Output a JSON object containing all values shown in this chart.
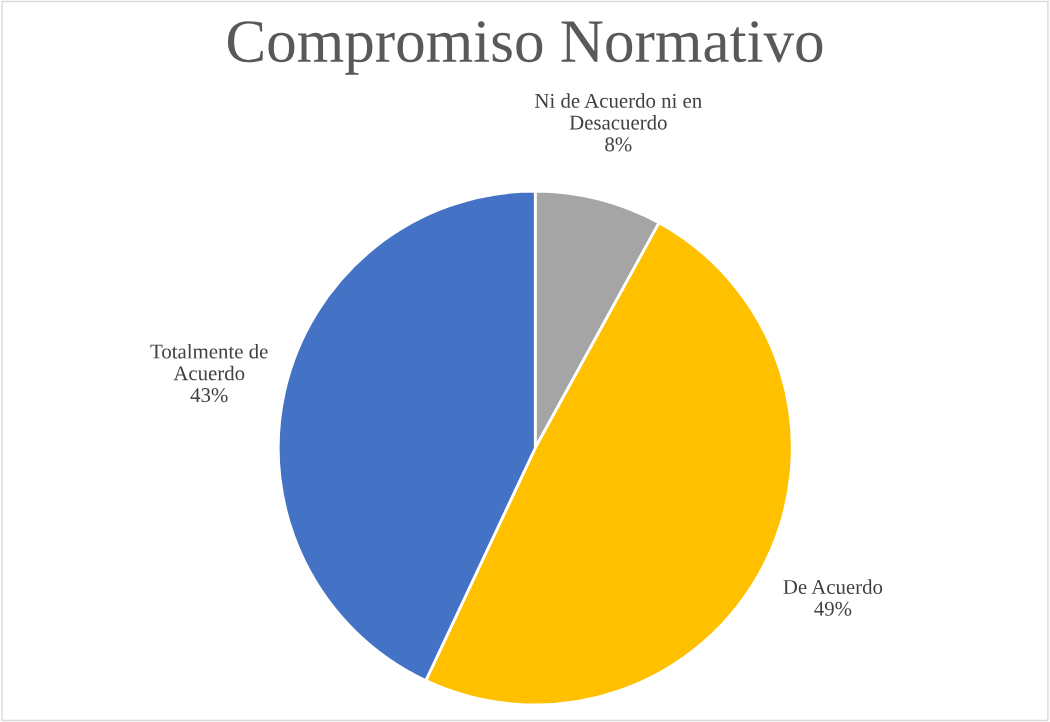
{
  "chart_data": {
    "type": "pie",
    "title": "Compromiso Normativo",
    "categories": [
      "Ni de Acuerdo ni en\nDesacuerdo",
      "De Acuerdo",
      "Totalmente de\nAcuerdo"
    ],
    "values": [
      8,
      49,
      43
    ],
    "colors": [
      "#a5a5a5",
      "#ffc000",
      "#4472c4"
    ],
    "value_labels": [
      "8%",
      "49%",
      "43%"
    ],
    "legend": false
  }
}
